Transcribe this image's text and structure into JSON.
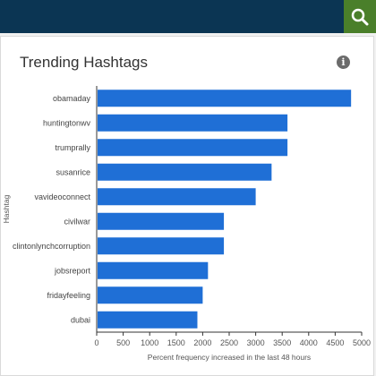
{
  "header": {
    "search_icon": "search-icon",
    "bar_color": "#0b3553",
    "search_bg": "#4a7f2a"
  },
  "card": {
    "title": "Trending Hashtags",
    "info_icon": "info-icon",
    "info_glyph": "i"
  },
  "chart_data": {
    "type": "bar",
    "orientation": "horizontal",
    "categories": [
      "obamaday",
      "huntingtonwv",
      "trumprally",
      "susanrice",
      "vavideoconnect",
      "civilwar",
      "clintonlynchcorruption",
      "jobsreport",
      "fridayfeeling",
      "dubai"
    ],
    "values": [
      4800,
      3600,
      3600,
      3300,
      3000,
      2400,
      2400,
      2100,
      2000,
      1900
    ],
    "xlabel": "Percent frequency increased in the last 48 hours",
    "ylabel": "Hashtag",
    "xlim": [
      0,
      5000
    ],
    "xticks": [
      0,
      500,
      1000,
      1500,
      2000,
      2500,
      3000,
      3500,
      4000,
      4500,
      5000
    ],
    "bar_color": "#1f6fd6",
    "grid": false
  }
}
